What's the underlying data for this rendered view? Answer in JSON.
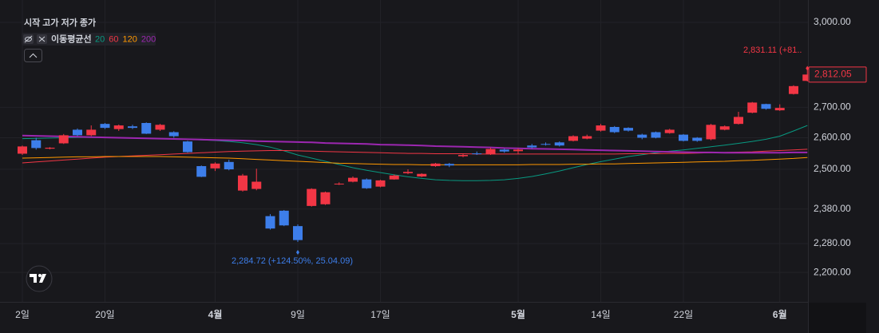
{
  "chart_data": {
    "type": "candlestick",
    "header": "시작 고가 저가 종가",
    "indicator": "이동평균선",
    "categories": [
      "2일",
      null,
      null,
      null,
      null,
      null,
      "20일",
      null,
      null,
      null,
      null,
      null,
      null,
      null,
      "4월",
      null,
      null,
      null,
      null,
      null,
      "9일",
      null,
      null,
      null,
      null,
      null,
      "17일",
      null,
      null,
      null,
      null,
      null,
      null,
      null,
      null,
      null,
      "5월",
      null,
      null,
      null,
      null,
      null,
      "14일",
      null,
      null,
      null,
      null,
      null,
      "22일",
      null,
      null,
      null,
      null,
      null,
      null,
      "6월",
      null,
      null
    ],
    "open": [
      2549,
      2592,
      2565,
      2582,
      2626,
      2608,
      2645,
      2628,
      2637,
      2648,
      2626,
      2618,
      2588,
      2510,
      2503,
      2523,
      2435,
      2440,
      2359,
      2375,
      2330,
      2389,
      2394,
      2454,
      2462,
      2469,
      2447,
      2469,
      2488,
      2478,
      2510,
      2517,
      2541,
      2550,
      2547,
      2562,
      2557,
      2575,
      2580,
      2585,
      2590,
      2597,
      2623,
      2635,
      2632,
      2610,
      2618,
      2615,
      2610,
      2600,
      2595,
      2626,
      2645,
      2682,
      2711,
      2690,
      2745,
      2790
    ],
    "high": [
      2575,
      2600,
      2570,
      2612,
      2630,
      2640,
      2648,
      2643,
      2642,
      2650,
      2645,
      2621,
      2590,
      2512,
      2522,
      2530,
      2486,
      2502,
      2365,
      2377,
      2335,
      2442,
      2432,
      2460,
      2478,
      2472,
      2468,
      2484,
      2500,
      2488,
      2520,
      2520,
      2548,
      2556,
      2568,
      2565,
      2566,
      2580,
      2585,
      2588,
      2608,
      2610,
      2645,
      2638,
      2634,
      2613,
      2620,
      2629,
      2612,
      2602,
      2645,
      2640,
      2685,
      2718,
      2712,
      2710,
      2775,
      2831.11
    ],
    "low": [
      2545,
      2562,
      2563,
      2580,
      2605,
      2605,
      2628,
      2622,
      2628,
      2612,
      2622,
      2600,
      2552,
      2476,
      2495,
      2497,
      2432,
      2436,
      2320,
      2330,
      2284.72,
      2387,
      2392,
      2452,
      2460,
      2440,
      2445,
      2468,
      2485,
      2476,
      2508,
      2507,
      2538,
      2545,
      2545,
      2552,
      2548,
      2565,
      2575,
      2572,
      2588,
      2595,
      2620,
      2615,
      2620,
      2595,
      2598,
      2613,
      2588,
      2587,
      2592,
      2624,
      2643,
      2680,
      2692,
      2688,
      2743,
      2788
    ],
    "close": [
      2572,
      2567,
      2568,
      2608,
      2608,
      2626,
      2632,
      2640,
      2632,
      2613,
      2642,
      2605,
      2554,
      2477,
      2518,
      2500,
      2481,
      2462,
      2323,
      2332,
      2290,
      2440,
      2430,
      2456,
      2474,
      2442,
      2466,
      2481,
      2492,
      2486,
      2518,
      2512,
      2545,
      2548,
      2564,
      2556,
      2562,
      2569,
      2578,
      2575,
      2605,
      2605,
      2640,
      2618,
      2623,
      2600,
      2600,
      2626,
      2590,
      2590,
      2642,
      2637,
      2668,
      2716,
      2695,
      2698,
      2772,
      2812.05
    ],
    "up_color": "#f23645",
    "down_color": "#3d7eea",
    "series": [
      {
        "name": "20",
        "color": "#089981",
        "values": [
          2597,
          2598,
          2599,
          2600,
          2601,
          2601,
          2601,
          2600,
          2599,
          2598,
          2597,
          2596,
          2595,
          2593,
          2591,
          2588,
          2584,
          2578,
          2570,
          2558,
          2545,
          2535,
          2525,
          2515,
          2505,
          2497,
          2490,
          2483,
          2477,
          2472,
          2468,
          2466,
          2465,
          2465,
          2466,
          2468,
          2472,
          2478,
          2486,
          2495,
          2505,
          2515,
          2524,
          2532,
          2540,
          2546,
          2552,
          2557,
          2561,
          2566,
          2571,
          2576,
          2582,
          2588,
          2595,
          2605,
          2622,
          2640
        ]
      },
      {
        "name": "60",
        "color": "#f23645",
        "values": [
          2520,
          2523,
          2526,
          2529,
          2532,
          2535,
          2538,
          2540,
          2542,
          2544,
          2546,
          2548,
          2550,
          2552,
          2554,
          2556,
          2557,
          2558,
          2559,
          2559,
          2558,
          2557,
          2556,
          2555,
          2554,
          2553,
          2552,
          2551,
          2550,
          2550,
          2549,
          2549,
          2549,
          2548,
          2548,
          2548,
          2548,
          2548,
          2548,
          2548,
          2548,
          2548,
          2548,
          2548,
          2549,
          2549,
          2549,
          2550,
          2550,
          2551,
          2552,
          2553,
          2554,
          2555,
          2557,
          2559,
          2561,
          2563
        ]
      },
      {
        "name": "120",
        "color": "#ff9800",
        "values": [
          2535,
          2536,
          2537,
          2538,
          2539,
          2539,
          2540,
          2540,
          2540,
          2540,
          2540,
          2539,
          2538,
          2537,
          2536,
          2535,
          2533,
          2531,
          2529,
          2527,
          2525,
          2523,
          2521,
          2519,
          2518,
          2517,
          2516,
          2515,
          2515,
          2514,
          2514,
          2514,
          2514,
          2514,
          2514,
          2514,
          2514,
          2515,
          2515,
          2515,
          2516,
          2516,
          2517,
          2517,
          2518,
          2519,
          2520,
          2521,
          2522,
          2523,
          2524,
          2525,
          2527,
          2528,
          2530,
          2532,
          2534,
          2537
        ]
      },
      {
        "name": "200",
        "color": "#9c27b0",
        "values": [
          2607,
          2606,
          2605,
          2604,
          2603,
          2602,
          2601,
          2600,
          2599,
          2598,
          2597,
          2596,
          2595,
          2594,
          2593,
          2592,
          2591,
          2589,
          2588,
          2587,
          2586,
          2585,
          2583,
          2582,
          2581,
          2580,
          2578,
          2577,
          2576,
          2575,
          2573,
          2572,
          2571,
          2570,
          2569,
          2567,
          2566,
          2565,
          2564,
          2563,
          2562,
          2561,
          2560,
          2559,
          2558,
          2557,
          2556,
          2555,
          2554,
          2553,
          2553,
          2552,
          2552,
          2552,
          2552,
          2552,
          2553,
          2553
        ]
      }
    ],
    "ylim": [
      2121,
      3039
    ],
    "yticks": [
      {
        "value": 3000,
        "label": "3,000.00"
      },
      {
        "value": 2700,
        "label": "2,700.00"
      },
      {
        "value": 2600,
        "label": "2,600.00"
      },
      {
        "value": 2500,
        "label": "2,500.00"
      },
      {
        "value": 2380,
        "label": "2,380.00"
      },
      {
        "value": 2280,
        "label": "2,280.00"
      },
      {
        "value": 2200,
        "label": "2,200.00"
      }
    ],
    "log_scale": true,
    "grid": true,
    "high_label": "2,831.11 (+81..",
    "low_label": "2,284.72 (+124.50%, 25.04.09)",
    "last_label": "2,812.05"
  }
}
